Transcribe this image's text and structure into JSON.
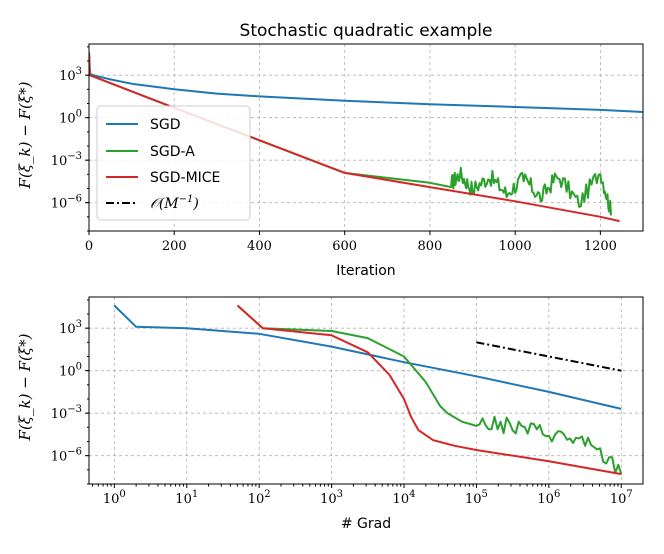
{
  "chart_data": [
    {
      "type": "line",
      "title": "Stochastic quadratic example",
      "xlabel": "Iteration",
      "ylabel": "F(ξ_k) − F(ξ*)",
      "xscale": "linear",
      "yscale": "log",
      "xlim": [
        0,
        1300
      ],
      "ylim_log10": [
        -8,
        5.2
      ],
      "xticks": [
        "0",
        "200",
        "400",
        "600",
        "800",
        "1000",
        "1200"
      ],
      "yticks": [
        "10^-6",
        "10^-3",
        "10^0",
        "10^3"
      ],
      "grid": true,
      "legend": {
        "position": "left-middle",
        "entries": [
          "SGD",
          "SGD-A",
          "SGD-MICE",
          "O(M^-1)"
        ]
      },
      "series": [
        {
          "name": "SGD",
          "color": "#1f77b4",
          "x": [
            0,
            2,
            10,
            50,
            100,
            200,
            300,
            400,
            600,
            800,
            1000,
            1200,
            1300
          ],
          "y_log10": [
            4.6,
            3.1,
            3.0,
            2.7,
            2.4,
            2.0,
            1.7,
            1.5,
            1.2,
            0.95,
            0.75,
            0.55,
            0.4
          ]
        },
        {
          "name": "SGD-A",
          "color": "#2ca02c",
          "x": [
            0,
            2,
            200,
            400,
            600,
            800,
            850,
            870,
            900,
            940,
            980,
            1020,
            1060,
            1100,
            1150,
            1200,
            1225
          ],
          "y_log10": [
            4.6,
            3.0,
            0.7,
            -1.6,
            -3.9,
            -4.6,
            -4.9,
            -4.2,
            -5.3,
            -4.4,
            -5.6,
            -4.5,
            -5.9,
            -4.3,
            -6.3,
            -4.0,
            -6.9
          ],
          "noisy_from_x": 820
        },
        {
          "name": "SGD-MICE",
          "color": "#d62728",
          "x": [
            0,
            2,
            200,
            400,
            600,
            800,
            1000,
            1200,
            1245
          ],
          "y_log10": [
            4.6,
            3.0,
            0.7,
            -1.6,
            -3.9,
            -4.9,
            -5.9,
            -7.0,
            -7.3
          ]
        }
      ]
    },
    {
      "type": "line",
      "title": "",
      "xlabel": "# Grad",
      "ylabel": "F(ξ_k) − F(ξ*)",
      "xscale": "log",
      "yscale": "log",
      "xlim_log10": [
        -0.35,
        7.3
      ],
      "ylim_log10": [
        -8,
        5.2
      ],
      "xticks": [
        "10^0",
        "10^1",
        "10^2",
        "10^3",
        "10^4",
        "10^5",
        "10^6",
        "10^7"
      ],
      "yticks": [
        "10^-6",
        "10^-3",
        "10^0",
        "10^3"
      ],
      "grid": true,
      "series": [
        {
          "name": "SGD",
          "color": "#1f77b4",
          "x_log10": [
            0,
            0.3,
            1,
            2,
            3,
            4,
            5,
            6,
            7
          ],
          "y_log10": [
            4.6,
            3.1,
            3.0,
            2.6,
            1.7,
            0.6,
            -0.4,
            -1.5,
            -2.7
          ]
        },
        {
          "name": "SGD-A",
          "color": "#2ca02c",
          "x_log10": [
            1.7,
            2.05,
            3,
            3.5,
            4.0,
            4.3,
            4.5,
            4.6,
            4.8,
            5.0,
            5.5,
            6.0,
            6.5,
            7.0
          ],
          "y_log10": [
            4.6,
            3.0,
            2.8,
            2.3,
            1.0,
            -0.8,
            -2.5,
            -3.0,
            -3.6,
            -3.9,
            -4.2,
            -4.6,
            -5.3,
            -7.3
          ],
          "noisy_from_x_log10": 4.9
        },
        {
          "name": "SGD-MICE",
          "color": "#d62728",
          "x_log10": [
            1.7,
            2.05,
            3.0,
            3.5,
            3.8,
            4.0,
            4.1,
            4.2,
            4.4,
            4.7,
            5.0,
            6.0,
            7.0
          ],
          "y_log10": [
            4.6,
            3.0,
            2.5,
            1.3,
            -0.3,
            -2.0,
            -3.3,
            -4.2,
            -4.9,
            -5.3,
            -5.6,
            -6.4,
            -7.3
          ]
        },
        {
          "name": "O(M^-1)",
          "color": "#000000",
          "dash": "dash-dot",
          "x_log10": [
            5,
            7
          ],
          "y_log10": [
            2,
            0
          ]
        }
      ]
    }
  ]
}
